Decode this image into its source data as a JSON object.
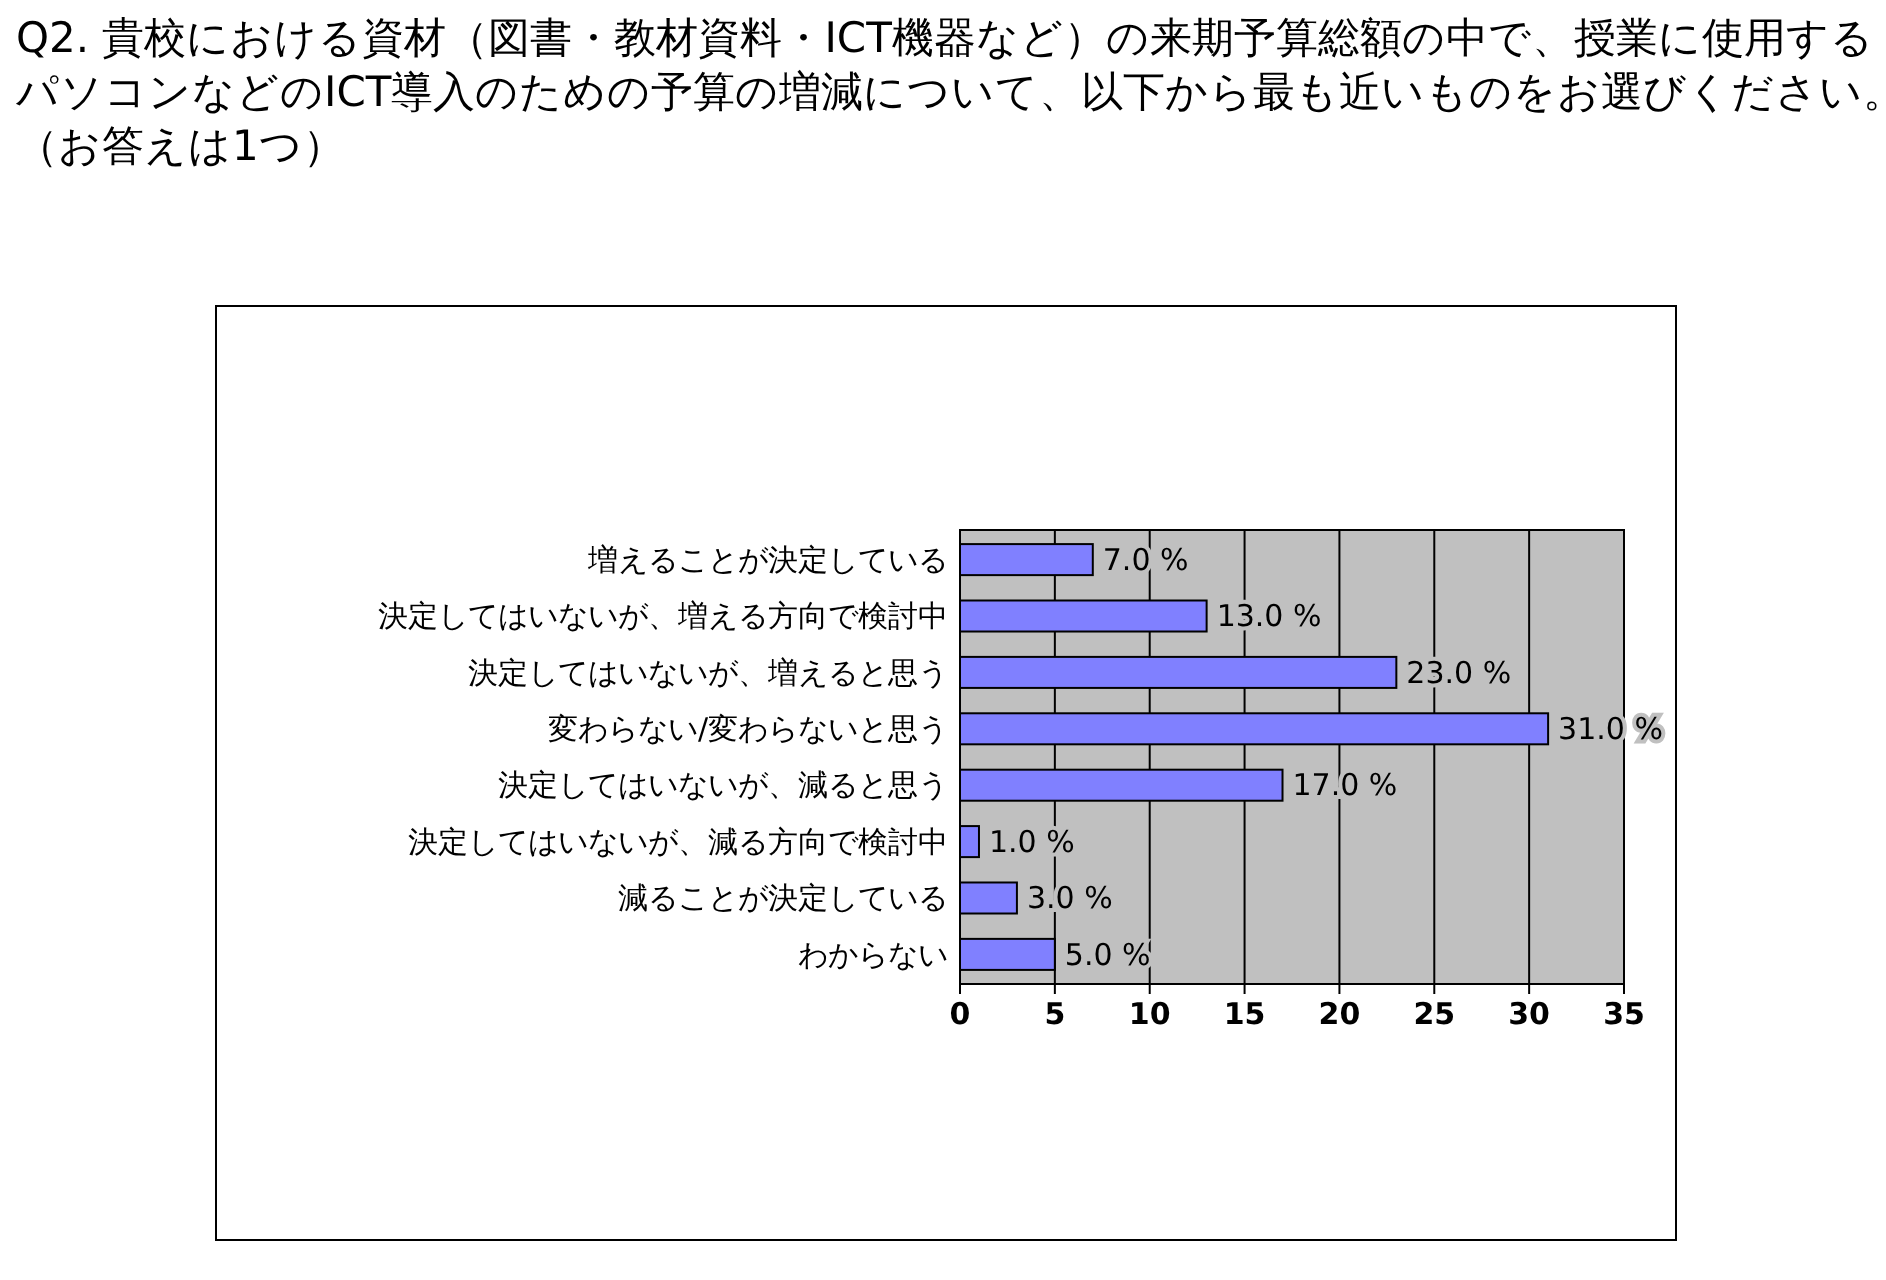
{
  "chart_data": {
    "type": "bar",
    "orientation": "horizontal",
    "title": "Q2. 貴校における資材（図書・教材資料・ICT機器など）の来期予算総額の中で、授業に使用するパソコンなどのICT導入のための予算の増減について、以下から最も近いものをお選びください。（お答えは1つ）",
    "categories": [
      "増えることが決定している",
      "決定してはいないが、増える方向で検討中",
      "決定してはいないが、増えると思う",
      "変わらない/変わらないと思う",
      "決定してはいないが、減ると思う",
      "決定してはいないが、減る方向で検討中",
      "減ることが決定している",
      "わからない"
    ],
    "values": [
      7,
      13,
      23,
      31,
      17,
      1,
      3,
      5
    ],
    "value_labels": [
      "7.0 %",
      "13.0 %",
      "23.0 %",
      "31.0 %",
      "17.0 %",
      "1.0 %",
      "3.0 %",
      "5.0 %"
    ],
    "color": "#8080ff",
    "xlim": [
      0,
      35
    ],
    "xticks": [
      0,
      5,
      10,
      15,
      20,
      25,
      30,
      35
    ],
    "grid": "x"
  }
}
